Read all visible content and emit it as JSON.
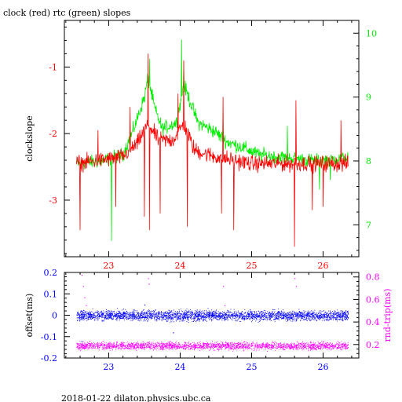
{
  "page": {
    "title": "clock (red) rtc (green) slopes",
    "footer": "2018-01-22 dilaton.physics.ubc.ca"
  },
  "colors": {
    "clock": "#ff0000",
    "rtc": "#00ee00",
    "offset": "#0000ff",
    "roundtrip": "#ff00ff",
    "axis": "#000000"
  },
  "chart_data": [
    {
      "type": "line",
      "title": "clock (red) rtc (green) slopes",
      "xlabel": "",
      "ylabel": "clockslope",
      "ylabel_right": "",
      "xlim": [
        22.38,
        26.5
      ],
      "ylim": [
        -3.85,
        -0.3
      ],
      "ylim_right": [
        6.5,
        10.2
      ],
      "x_ticks": [
        23,
        24,
        25,
        26
      ],
      "y_ticks": [
        -1,
        -2,
        -3
      ],
      "y_ticks_right": [
        7,
        8,
        9,
        10
      ],
      "series": [
        {
          "axis": "left",
          "color": "#ff0000",
          "x_range": [
            22.55,
            26.35
          ],
          "baseline": [
            [
              22.55,
              -2.45
            ],
            [
              22.9,
              -2.4
            ],
            [
              23.2,
              -2.35
            ],
            [
              23.4,
              -2.15
            ],
            [
              23.55,
              -1.85
            ],
            [
              23.7,
              -2.1
            ],
            [
              23.9,
              -2.1
            ],
            [
              24.05,
              -1.85
            ],
            [
              24.2,
              -2.25
            ],
            [
              24.5,
              -2.35
            ],
            [
              25.0,
              -2.45
            ],
            [
              25.5,
              -2.45
            ],
            [
              26.35,
              -2.45
            ]
          ],
          "spikes": [
            [
              22.6,
              -3.45
            ],
            [
              22.85,
              -1.95
            ],
            [
              23.1,
              -3.1
            ],
            [
              23.3,
              -1.6
            ],
            [
              23.5,
              -3.25
            ],
            [
              23.55,
              -0.8
            ],
            [
              23.57,
              -3.45
            ],
            [
              23.72,
              -3.2
            ],
            [
              23.97,
              -1.4
            ],
            [
              24.05,
              -0.9
            ],
            [
              24.1,
              -3.4
            ],
            [
              24.6,
              -1.45
            ],
            [
              24.58,
              -3.2
            ],
            [
              24.75,
              -3.45
            ],
            [
              25.6,
              -3.7
            ],
            [
              25.62,
              -1.5
            ],
            [
              25.85,
              -3.15
            ],
            [
              26.0,
              -3.1
            ],
            [
              26.25,
              -1.8
            ]
          ]
        },
        {
          "axis": "right",
          "color": "#00ee00",
          "x_range": [
            22.55,
            26.35
          ],
          "baseline": [
            [
              22.55,
              7.95
            ],
            [
              22.9,
              8.0
            ],
            [
              23.2,
              8.1
            ],
            [
              23.35,
              8.5
            ],
            [
              23.5,
              9.0
            ],
            [
              23.55,
              9.3
            ],
            [
              23.65,
              8.8
            ],
            [
              23.75,
              8.5
            ],
            [
              23.95,
              8.6
            ],
            [
              24.05,
              9.2
            ],
            [
              24.15,
              8.9
            ],
            [
              24.25,
              8.6
            ],
            [
              24.5,
              8.45
            ],
            [
              24.65,
              8.3
            ],
            [
              24.9,
              8.2
            ],
            [
              25.1,
              8.1
            ],
            [
              25.5,
              8.05
            ],
            [
              25.9,
              8.0
            ],
            [
              26.35,
              8.05
            ]
          ],
          "spikes": [
            [
              23.04,
              6.75
            ],
            [
              23.57,
              9.6
            ],
            [
              24.02,
              9.9
            ],
            [
              24.05,
              9.55
            ],
            [
              24.6,
              8.75
            ],
            [
              25.5,
              8.55
            ],
            [
              25.95,
              7.55
            ],
            [
              26.1,
              7.7
            ]
          ]
        }
      ]
    },
    {
      "type": "scatter",
      "title": "",
      "xlabel": "",
      "ylabel": "offset(ms)",
      "ylabel_right": "rnd-trip(ms)",
      "xlim": [
        22.38,
        26.5
      ],
      "ylim": [
        -0.2,
        0.2
      ],
      "ylim_right": [
        0.08,
        0.84
      ],
      "x_ticks": [
        23,
        24,
        25,
        26
      ],
      "y_ticks": [
        0.2,
        0.1,
        0,
        -0.1,
        -0.2
      ],
      "y_ticks_right": [
        0.8,
        0.6,
        0.4,
        0.2
      ],
      "series": [
        {
          "axis": "left",
          "color": "#0000ff",
          "x_range": [
            22.55,
            26.35
          ],
          "center": 0.0,
          "spread": 0.035,
          "outliers": [
            [
              22.62,
              -0.12
            ],
            [
              23.5,
              0.05
            ],
            [
              23.9,
              -0.08
            ]
          ]
        },
        {
          "axis": "right",
          "color": "#ff00ff",
          "x_range": [
            22.55,
            26.35
          ],
          "center": 0.19,
          "spread": 0.05,
          "outliers": [
            [
              22.62,
              0.82
            ],
            [
              22.64,
              0.72
            ],
            [
              22.66,
              0.62
            ],
            [
              22.68,
              0.55
            ],
            [
              23.55,
              0.79
            ],
            [
              23.56,
              0.74
            ],
            [
              24.6,
              0.72
            ],
            [
              24.62,
              0.55
            ],
            [
              25.6,
              0.79
            ],
            [
              25.62,
              0.72
            ]
          ]
        }
      ]
    }
  ]
}
